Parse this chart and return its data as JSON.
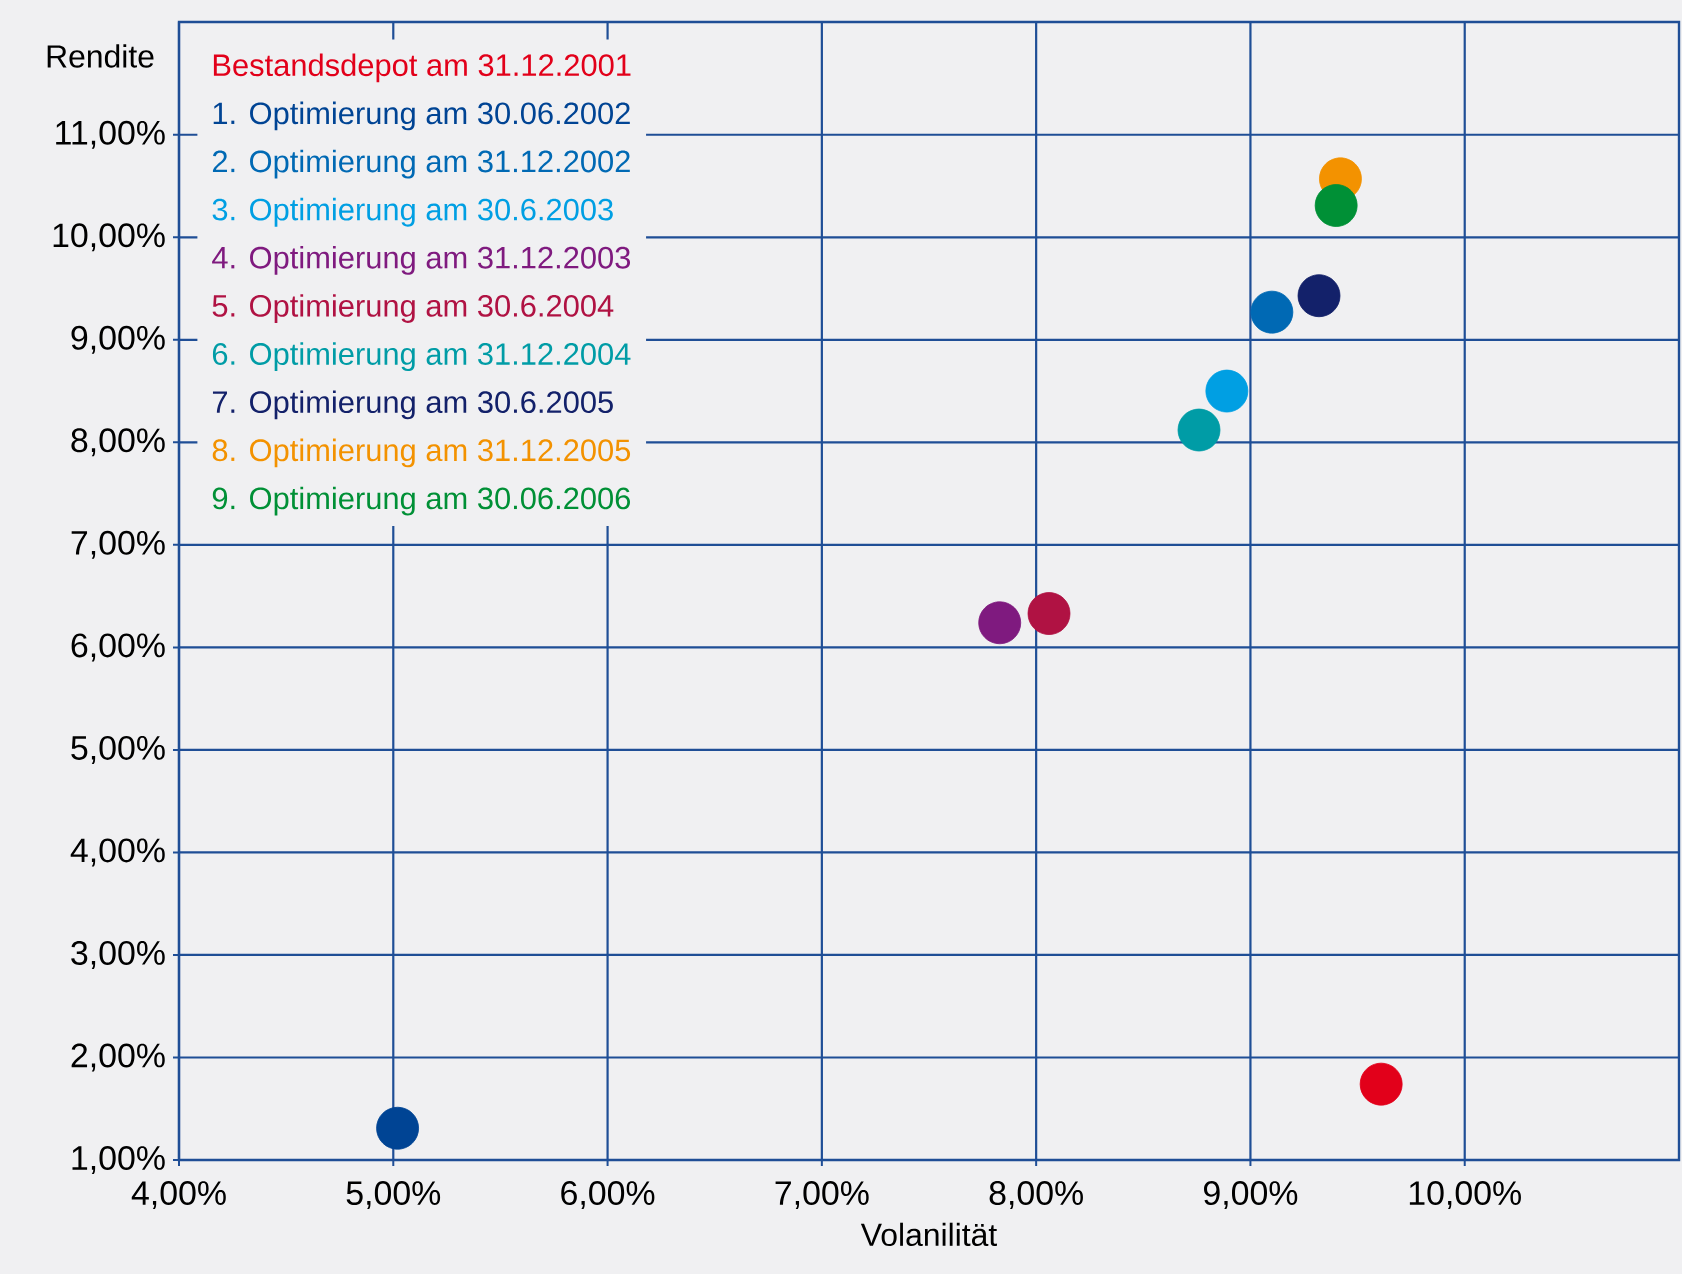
{
  "chart_data": {
    "type": "scatter",
    "xlabel": "Volanilität",
    "ylabel": "Rendite",
    "xlim": [
      4,
      11
    ],
    "ylim": [
      1,
      12.1
    ],
    "xticks": [
      {
        "value": 4,
        "label": "4,00%"
      },
      {
        "value": 5,
        "label": "5,00%"
      },
      {
        "value": 6,
        "label": "6,00%"
      },
      {
        "value": 7,
        "label": "7,00%"
      },
      {
        "value": 8,
        "label": "8,00%"
      },
      {
        "value": 9,
        "label": "9,00%"
      },
      {
        "value": 10,
        "label": "10,00%"
      }
    ],
    "yticks": [
      {
        "value": 1,
        "label": "1,00%"
      },
      {
        "value": 2,
        "label": "2,00%"
      },
      {
        "value": 3,
        "label": "3,00%"
      },
      {
        "value": 4,
        "label": "4,00%"
      },
      {
        "value": 5,
        "label": "5,00%"
      },
      {
        "value": 6,
        "label": "6,00%"
      },
      {
        "value": 7,
        "label": "7,00%"
      },
      {
        "value": 8,
        "label": "8,00%"
      },
      {
        "value": 9,
        "label": "9,00%"
      },
      {
        "value": 10,
        "label": "10,00%"
      },
      {
        "value": 11,
        "label": "11,00%"
      }
    ],
    "grid": true,
    "legend": "top left",
    "marker": "circle",
    "series": [
      {
        "name": "Bestandsdepot am 31.12.2001",
        "color": "#e2001a",
        "x": [
          9.61
        ],
        "values": [
          1.74
        ]
      },
      {
        "name": "1. Optimierung am 30.06.2002",
        "color": "#004494",
        "x": [
          5.02
        ],
        "values": [
          1.31
        ]
      },
      {
        "name": "2. Optimierung am 31.12.2002",
        "color": "#0069b4",
        "x": [
          9.1
        ],
        "values": [
          9.27
        ]
      },
      {
        "name": "3. Optimierung am 30.6.2003",
        "color": "#009fe3",
        "x": [
          8.89
        ],
        "values": [
          8.5
        ]
      },
      {
        "name": "4. Optimierung am 31.12.2003",
        "color": "#7f1a7f",
        "x": [
          7.83
        ],
        "values": [
          6.24
        ]
      },
      {
        "name": "5. Optimierung am 30.6.2004",
        "color": "#b01243",
        "x": [
          8.06
        ],
        "values": [
          6.33
        ]
      },
      {
        "name": "6. Optimierung am 31.12.2004",
        "color": "#009ca6",
        "x": [
          8.76
        ],
        "values": [
          8.12
        ]
      },
      {
        "name": "7. Optimierung am 30.6.2005",
        "color": "#13216a",
        "x": [
          9.32
        ],
        "values": [
          9.43
        ]
      },
      {
        "name": "8. Optimierung am 31.12.2005",
        "color": "#f39200",
        "x": [
          9.42
        ],
        "values": [
          10.57
        ]
      },
      {
        "name": "9. Optimierung am 30.06.2006",
        "color": "#009036",
        "x": [
          9.4
        ],
        "values": [
          10.31
        ]
      }
    ]
  }
}
